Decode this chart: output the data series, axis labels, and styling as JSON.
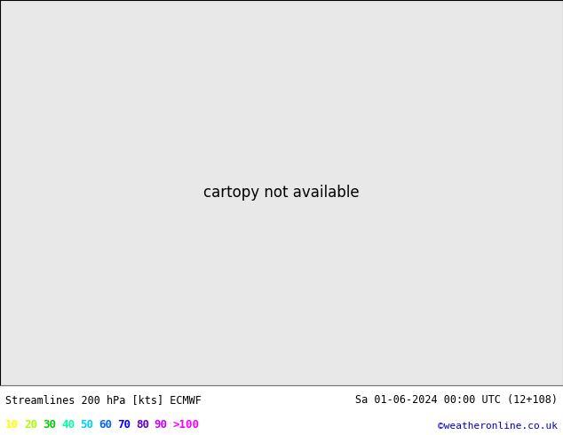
{
  "title_left": "Streamlines 200 hPa [kts] ECMWF",
  "title_right": "Sa 01-06-2024 00:00 UTC (12+108)",
  "credit": "©weatheronline.co.uk",
  "legend_values": [
    "10",
    "20",
    "30",
    "40",
    "50",
    "60",
    "70",
    "80",
    "90",
    ">100"
  ],
  "legend_colors": [
    "#ffff00",
    "#aaff00",
    "#00cc00",
    "#00ffaa",
    "#00ccff",
    "#0066ff",
    "#0000ff",
    "#6600cc",
    "#cc00ff",
    "#ff00ff"
  ],
  "background_color": "#e8e8e8",
  "land_color": "#d0d0d0",
  "fig_width": 6.34,
  "fig_height": 4.9,
  "dpi": 100,
  "lon_min": -25,
  "lon_max": 18,
  "lat_min": 43,
  "lat_max": 73,
  "bottom_bar_height": 0.115,
  "bottom_bar_color": "#ffffff",
  "font_color_title": "#000000",
  "font_color_credit": "#0000cc",
  "speed_cmap": [
    [
      0,
      "#e8e8e8"
    ],
    [
      0.08,
      "#ffff00"
    ],
    [
      0.18,
      "#aaff00"
    ],
    [
      0.27,
      "#00dd00"
    ],
    [
      0.36,
      "#00ffaa"
    ],
    [
      0.45,
      "#00ccff"
    ],
    [
      0.54,
      "#0088ff"
    ],
    [
      0.63,
      "#0000ff"
    ],
    [
      0.72,
      "#6600cc"
    ],
    [
      0.81,
      "#cc00ff"
    ],
    [
      1.0,
      "#ff00ff"
    ]
  ]
}
